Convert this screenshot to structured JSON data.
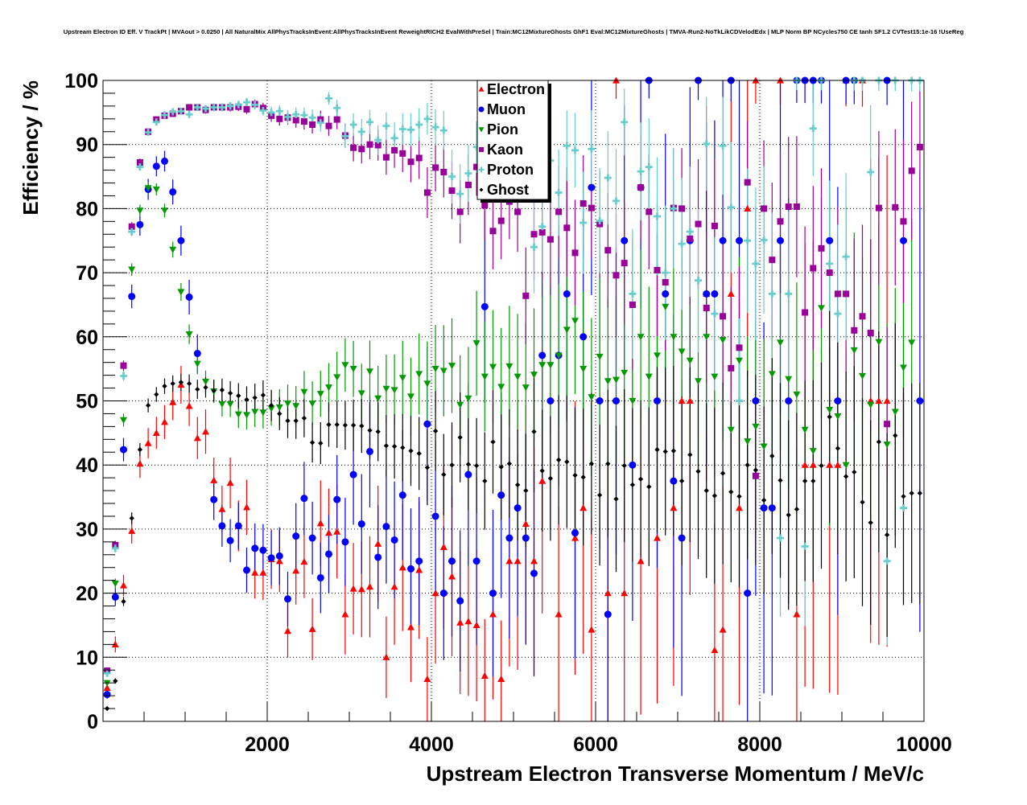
{
  "chart_data": {
    "type": "scatter",
    "title": "Upstream Electron ID Eff. V TrackPt | MVAout > 0.0250 | All NaturalMix AllPhysTracksInEvent:AllPhysTracksInEvent ReweightRICH2 EvalWithPreSel | Train:MC12MixtureGhosts GhF1 Eval:MC12MixtureGhosts | TMVA-Run2-NoTkLikCDVelodEdx | MLP Norm BP NCycles750 CE tanh SF1.2 CVTest15:1e-16 !UseReg",
    "xlabel": "Upstream Electron Transverse Momentum / MeV/c",
    "ylabel": "Efficiency / %",
    "xlim": [
      0,
      10000
    ],
    "ylim": [
      0,
      100
    ],
    "bin_width": 100,
    "xticks": [
      2000,
      4000,
      6000,
      8000,
      10000
    ],
    "xtick_labels": [
      "2000",
      "4000",
      "6000",
      "8000",
      "10000"
    ],
    "yticks": [
      0,
      10,
      20,
      30,
      40,
      50,
      60,
      70,
      80,
      90,
      100
    ],
    "ytick_labels": [
      "0",
      "10",
      "20",
      "30",
      "40",
      "50",
      "60",
      "70",
      "80",
      "90",
      "100"
    ],
    "grid": true,
    "legend_position": "top-center",
    "series": [
      {
        "name": "Electron",
        "color": "#ff0000",
        "marker": "triangle-up",
        "values": [
          5.2,
          12,
          21.2,
          29.7,
          40.2,
          43.4,
          45,
          46.7,
          49.8,
          52.5,
          49.2,
          44.2,
          45.2,
          37.6,
          33.1,
          37.2,
          30.5,
          33.4,
          23.2,
          23.2,
          25.3,
          25,
          14.1,
          23.5,
          24.9,
          14.4,
          30.9,
          29.4,
          29.6,
          16.7,
          20.7,
          20.6,
          21,
          27.7,
          10,
          21,
          24,
          14.7,
          23.6,
          6.6,
          20,
          27.2,
          22.6,
          15.4,
          15.6,
          15,
          7.1,
          16.7,
          6.6,
          25,
          25,
          30.8,
          25,
          37.5,
          null,
          16.7,
          null,
          28.6,
          33.3,
          14.3,
          null,
          20,
          100,
          20,
          null,
          25,
          null,
          28.6,
          null,
          33.3,
          50,
          50,
          null,
          66.7,
          11.1,
          14.3,
          66.7,
          33.3,
          80,
          100,
          null,
          null,
          100,
          null,
          16.7,
          40,
          40,
          null,
          40,
          40,
          100,
          null,
          100,
          50,
          50,
          50,
          null,
          null,
          null,
          null
        ]
      },
      {
        "name": "Muon",
        "color": "#0000ff",
        "marker": "circle",
        "values": [
          4.2,
          19.4,
          42.4,
          66.3,
          77.5,
          83,
          86.6,
          87.4,
          82.6,
          75,
          66.2,
          57.4,
          null,
          34.6,
          30.5,
          28.2,
          30.5,
          23.6,
          27,
          26.7,
          25.5,
          25.8,
          19.1,
          28.9,
          34.8,
          28.6,
          22.4,
          26.1,
          34.6,
          28,
          38.5,
          30.8,
          42.1,
          25.6,
          30.4,
          28.3,
          35.3,
          23.8,
          25,
          46.4,
          32,
          20,
          25,
          18.8,
          38.5,
          25,
          64.7,
          20,
          35.3,
          28.6,
          33.3,
          28.6,
          23.1,
          57.1,
          50,
          57.1,
          66.7,
          29.4,
          60,
          83.3,
          50,
          16.7,
          50,
          75,
          40,
          83.3,
          100,
          50,
          66.7,
          37.5,
          28.6,
          75,
          100,
          66.7,
          66.7,
          75,
          100,
          75,
          20,
          50,
          33.3,
          33.3,
          75,
          50,
          100,
          100,
          100,
          100,
          75,
          50,
          100,
          100,
          null,
          null,
          null,
          100,
          null,
          75,
          null,
          50
        ]
      },
      {
        "name": "Pion",
        "color": "#009900",
        "marker": "triangle-down",
        "values": [
          6,
          21.5,
          47,
          70.5,
          79.7,
          83.2,
          83,
          79.7,
          73.6,
          67,
          60.4,
          55.8,
          53,
          51.5,
          49.5,
          49.5,
          47.9,
          47.8,
          48.3,
          48.2,
          48.8,
          49,
          49.6,
          49.2,
          51.4,
          49.6,
          51.1,
          52.1,
          53.7,
          55.6,
          55,
          51.2,
          54.6,
          50.4,
          51.9,
          51.7,
          53.6,
          50.7,
          54.2,
          52.7,
          55,
          54.7,
          55.5,
          49.4,
          50.4,
          59,
          53.8,
          55.3,
          52.2,
          55.4,
          53.8,
          52.1,
          54.1,
          55.6,
          55.6,
          57.1,
          61.1,
          62.5,
          55,
          50.6,
          56.9,
          53.1,
          53.3,
          54.4,
          50,
          60,
          53.8,
          57.1,
          64.7,
          60,
          57.7,
          56.3,
          53.1,
          60,
          53.8,
          59.5,
          45.5,
          56.3,
          43.7,
          46,
          42.9,
          54.2,
          59.1,
          53.4,
          51,
          45.5,
          42.2,
          64.5,
          48.6,
          47.6,
          40,
          57.9,
          53.9,
          49.4,
          59.2,
          43.2,
          48.3,
          55.2,
          59.1,
          null
        ]
      },
      {
        "name": "Kaon",
        "color": "#990099",
        "marker": "square",
        "values": [
          7.9,
          27.5,
          55.5,
          77.2,
          87.2,
          92,
          93.9,
          94.5,
          94.8,
          95.2,
          95.8,
          95.8,
          95.4,
          95.8,
          95.8,
          95.8,
          95.9,
          95.5,
          96.3,
          95.7,
          94.5,
          94,
          94.2,
          93.8,
          93.6,
          93.1,
          93.9,
          92.9,
          93.9,
          91.4,
          89.5,
          89.3,
          90,
          89.9,
          88,
          89.1,
          88.6,
          87.3,
          87.9,
          82.5,
          86.4,
          85.7,
          82.8,
          79.5,
          83.7,
          86.5,
          80.5,
          76.5,
          78.1,
          81.1,
          79.5,
          66.4,
          76,
          76.3,
          75.2,
          79.5,
          77,
          73.1,
          80.8,
          80.1,
          77.6,
          73.5,
          69.6,
          71.5,
          65,
          83.3,
          79.5,
          70.4,
          68.5,
          80.1,
          80,
          75.3,
          77.6,
          64.5,
          77.3,
          63.2,
          55.1,
          58.3,
          84.1,
          38.3,
          80,
          72,
          78,
          80.3,
          80.3,
          63.8,
          70.7,
          73.8,
          70,
          66.7,
          66.7,
          61,
          63.2,
          60.6,
          80.1,
          46.4,
          80.2,
          78,
          85.9,
          89.6
        ]
      },
      {
        "name": "Proton",
        "color": "#66cccc",
        "marker": "cross",
        "values": [
          7.5,
          27,
          53.9,
          76.4,
          86.5,
          91.9,
          93.5,
          94.6,
          95.1,
          95.2,
          94.7,
          95.8,
          95.6,
          95.8,
          95.8,
          96,
          96.2,
          96.6,
          96.2,
          95.3,
          95,
          95.2,
          94.3,
          94.7,
          94.6,
          94.2,
          93.4,
          97.2,
          95.7,
          91.3,
          93.1,
          92,
          93.5,
          90.7,
          92.9,
          91,
          92.4,
          92.3,
          93.1,
          94,
          92.7,
          92.2,
          85,
          82.3,
          85.5,
          89.6,
          91.3,
          90.3,
          86.1,
          87.6,
          90.6,
          86.4,
          74,
          77.2,
          87.5,
          82.5,
          89.8,
          89.1,
          77.8,
          89.3,
          78.1,
          84.8,
          81.2,
          93.5,
          66.7,
          85.8,
          86.5,
          78.8,
          70,
          80,
          74.5,
          76.4,
          68.8,
          90.1,
          63.6,
          89.8,
          80.2,
          50,
          75,
          71.4,
          75.1,
          66.7,
          28.6,
          66.7,
          100,
          27.3,
          92.5,
          100,
          71.4,
          63.6,
          72.5,
          100,
          100,
          85.7,
          100,
          25,
          100,
          33.3,
          100,
          100
        ]
      },
      {
        "name": "Ghost",
        "color": "#000000",
        "marker": "diamond",
        "values": [
          2,
          6.3,
          18.7,
          31.7,
          42.4,
          49.3,
          51,
          52.3,
          52.7,
          52.9,
          52.7,
          51.8,
          52.1,
          51.6,
          51.7,
          51.2,
          50.8,
          50.2,
          50.5,
          50.9,
          49.3,
          48,
          46.9,
          46.9,
          47.3,
          43.5,
          43.4,
          46.3,
          46.3,
          46.2,
          46.2,
          46.1,
          45.4,
          45.2,
          43,
          42.9,
          42.7,
          42.2,
          41.8,
          39.6,
          45.3,
          38.5,
          40,
          44.3,
          40.1,
          39.9,
          37.5,
          43.6,
          39.7,
          40.2,
          36.9,
          36,
          45.2,
          39.1,
          37.9,
          40.8,
          40.5,
          38.4,
          38.1,
          40.2,
          35.3,
          40.2,
          34.7,
          39.9,
          36.9,
          37.8,
          36.6,
          42.4,
          42.1,
          42.2,
          37.5,
          41.6,
          39,
          36,
          35.2,
          38.7,
          35.8,
          35.1,
          40,
          39.2,
          34.5,
          41.4,
          37.6,
          32.2,
          33.1,
          37.5,
          37.5,
          39.9,
          47.5,
          42.6,
          38.2,
          38.9,
          34.2,
          31,
          43.6,
          29.1,
          44.6,
          35.1,
          35.6,
          35.6
        ]
      }
    ]
  }
}
